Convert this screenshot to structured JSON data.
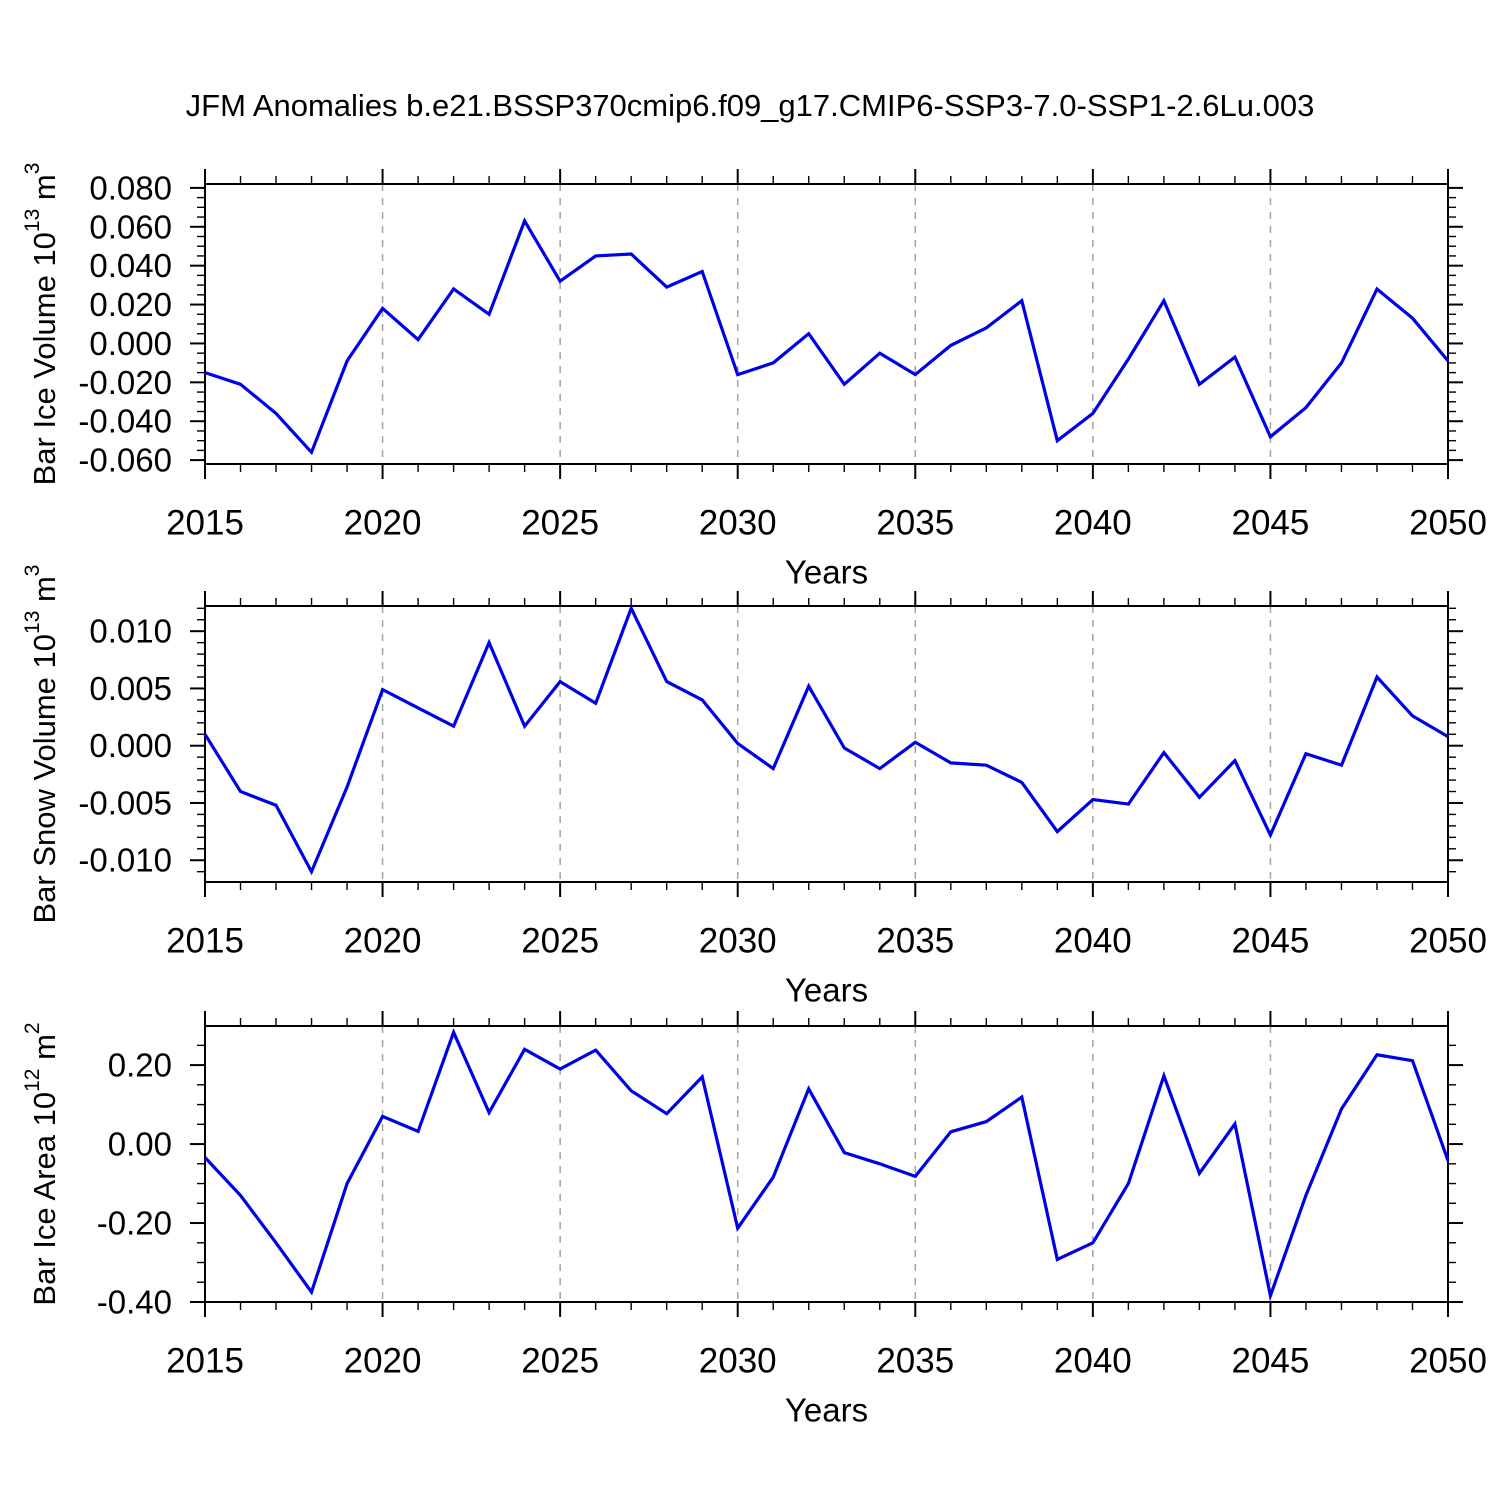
{
  "title": "JFM Anomalies b.e21.BSSP370cmip6.f09_g17.CMIP6-SSP3-7.0-SSP1-2.6Lu.003",
  "xlabel": "Years",
  "colors": {
    "line": "#0000e6",
    "grid": "#a3a3a3",
    "axis": "#000000"
  },
  "years": [
    2015,
    2016,
    2017,
    2018,
    2019,
    2020,
    2021,
    2022,
    2023,
    2024,
    2025,
    2026,
    2027,
    2028,
    2029,
    2030,
    2031,
    2032,
    2033,
    2034,
    2035,
    2036,
    2037,
    2038,
    2039,
    2040,
    2041,
    2042,
    2043,
    2044,
    2045,
    2046,
    2047,
    2048,
    2049,
    2050
  ],
  "x_major_ticks": [
    2015,
    2020,
    2025,
    2030,
    2035,
    2040,
    2045,
    2050
  ],
  "gridline_years": [
    2020,
    2025,
    2030,
    2035,
    2040,
    2045
  ],
  "chart_data": [
    {
      "type": "line",
      "title": "Bar Ice Volume 10^13 m^3",
      "ylabel_rich": [
        {
          "t": "Bar Ice Volume 10"
        },
        {
          "t": "13",
          "sup": true
        },
        {
          "t": " m"
        },
        {
          "t": "3",
          "sup": true
        }
      ],
      "xlabel": "Years",
      "ytick_labels": [
        "-0.060",
        "-0.040",
        "-0.020",
        "0.000",
        "0.020",
        "0.040",
        "0.060",
        "0.080"
      ],
      "ytick_values": [
        -0.06,
        -0.04,
        -0.02,
        0.0,
        0.02,
        0.04,
        0.06,
        0.08
      ],
      "ylim": [
        -0.062,
        0.082
      ],
      "y_minor_step": 0.005,
      "xlim": [
        2015,
        2050
      ],
      "grid": "vertical-dashed",
      "legend": "none",
      "values": [
        -0.015,
        -0.021,
        -0.036,
        -0.056,
        -0.009,
        0.018,
        0.002,
        0.028,
        0.015,
        0.063,
        0.032,
        0.045,
        0.046,
        0.029,
        0.037,
        -0.016,
        -0.01,
        0.005,
        -0.021,
        -0.005,
        -0.016,
        -0.001,
        0.008,
        0.022,
        -0.05,
        -0.036,
        -0.008,
        0.022,
        -0.021,
        -0.007,
        -0.048,
        -0.033,
        -0.01,
        0.028,
        0.013,
        -0.009
      ]
    },
    {
      "type": "line",
      "title": "Bar Snow Volume 10^13 m^3",
      "ylabel_rich": [
        {
          "t": "Bar Snow Volume 10"
        },
        {
          "t": "13",
          "sup": true
        },
        {
          "t": " m"
        },
        {
          "t": "3",
          "sup": true
        }
      ],
      "xlabel": "Years",
      "ytick_labels": [
        "-0.010",
        "-0.005",
        "0.000",
        "0.005",
        "0.010"
      ],
      "ytick_values": [
        -0.01,
        -0.005,
        0.0,
        0.005,
        0.01
      ],
      "ylim": [
        -0.0119,
        0.0122
      ],
      "y_minor_step": 0.001,
      "xlim": [
        2015,
        2050
      ],
      "grid": "vertical-dashed",
      "legend": "none",
      "values": [
        0.001,
        -0.004,
        -0.0052,
        -0.011,
        -0.0036,
        0.0049,
        0.0033,
        0.0017,
        0.009,
        0.0017,
        0.0056,
        0.0037,
        0.012,
        0.0056,
        0.004,
        0.0002,
        -0.002,
        0.0052,
        -0.0002,
        -0.002,
        0.0003,
        -0.0015,
        -0.0017,
        -0.0032,
        -0.0075,
        -0.0047,
        -0.0051,
        -0.0006,
        -0.0045,
        -0.0013,
        -0.0078,
        -0.0007,
        -0.0017,
        0.006,
        0.0026,
        0.0008
      ]
    },
    {
      "type": "line",
      "title": "Bar Ice Area 10^12 m^2",
      "ylabel_rich": [
        {
          "t": "Bar Ice Area 10"
        },
        {
          "t": "12",
          "sup": true
        },
        {
          "t": " m"
        },
        {
          "t": "2",
          "sup": true
        }
      ],
      "xlabel": "Years",
      "ytick_labels": [
        "-0.40",
        "-0.20",
        "0.00",
        "0.20"
      ],
      "ytick_values": [
        -0.4,
        -0.2,
        0.0,
        0.2
      ],
      "ylim": [
        -0.4,
        0.299
      ],
      "y_minor_step": 0.05,
      "xlim": [
        2015,
        2050
      ],
      "grid": "vertical-dashed",
      "legend": "none",
      "values": [
        -0.034,
        -0.13,
        -0.25,
        -0.375,
        -0.1,
        0.07,
        0.032,
        0.283,
        0.08,
        0.24,
        0.19,
        0.238,
        0.135,
        0.077,
        0.17,
        -0.213,
        -0.084,
        0.14,
        -0.022,
        -0.05,
        -0.082,
        0.031,
        0.057,
        0.119,
        -0.292,
        -0.25,
        -0.1,
        0.173,
        -0.074,
        0.051,
        -0.384,
        -0.13,
        0.089,
        0.226,
        0.211,
        -0.042
      ]
    }
  ]
}
